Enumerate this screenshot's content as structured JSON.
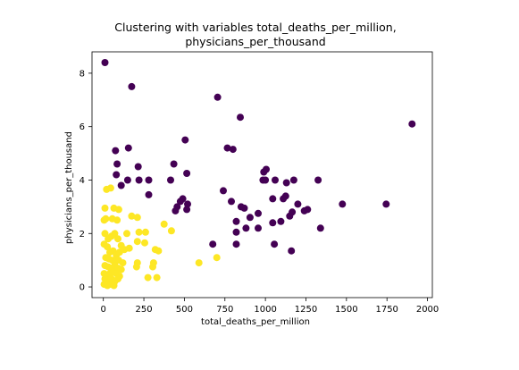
{
  "chart_data": {
    "type": "scatter",
    "title_line1": "Clustering with variables total_deaths_per_million,",
    "title_line2": "physicians_per_thousand",
    "xlabel": "total_deaths_per_million",
    "ylabel": "physicians_per_thousand",
    "xlim": [
      -70,
      2030
    ],
    "ylim": [
      -0.4,
      8.8
    ],
    "xticks": [
      0,
      250,
      500,
      750,
      1000,
      1250,
      1500,
      1750,
      2000
    ],
    "yticks": [
      0,
      2,
      4,
      6,
      8
    ],
    "grid": false,
    "legend": "none",
    "series": [
      {
        "color": "#440154",
        "points": [
          [
            10,
            8.4
          ],
          [
            175,
            7.5
          ],
          [
            705,
            7.1
          ],
          [
            845,
            6.35
          ],
          [
            1905,
            6.1
          ],
          [
            505,
            5.5
          ],
          [
            155,
            5.2
          ],
          [
            75,
            5.1
          ],
          [
            765,
            5.2
          ],
          [
            800,
            5.15
          ],
          [
            85,
            4.6
          ],
          [
            215,
            4.5
          ],
          [
            435,
            4.6
          ],
          [
            990,
            4.3
          ],
          [
            1005,
            4.4
          ],
          [
            80,
            4.2
          ],
          [
            150,
            4.0
          ],
          [
            220,
            4.0
          ],
          [
            280,
            4.0
          ],
          [
            415,
            4.0
          ],
          [
            515,
            4.25
          ],
          [
            985,
            4.0
          ],
          [
            1000,
            4.0
          ],
          [
            1060,
            4.0
          ],
          [
            1130,
            3.9
          ],
          [
            1175,
            4.0
          ],
          [
            1325,
            4.0
          ],
          [
            110,
            3.8
          ],
          [
            740,
            3.6
          ],
          [
            1125,
            3.4
          ],
          [
            1110,
            3.3
          ],
          [
            490,
            3.3
          ],
          [
            475,
            3.2
          ],
          [
            790,
            3.2
          ],
          [
            1045,
            3.3
          ],
          [
            280,
            3.45
          ],
          [
            1200,
            3.1
          ],
          [
            1475,
            3.1
          ],
          [
            1745,
            3.1
          ],
          [
            520,
            3.1
          ],
          [
            455,
            3.0
          ],
          [
            850,
            3.0
          ],
          [
            870,
            2.95
          ],
          [
            1260,
            2.9
          ],
          [
            1240,
            2.85
          ],
          [
            445,
            2.85
          ],
          [
            515,
            2.9
          ],
          [
            1165,
            2.8
          ],
          [
            1150,
            2.65
          ],
          [
            955,
            2.75
          ],
          [
            905,
            2.6
          ],
          [
            1095,
            2.45
          ],
          [
            1045,
            2.4
          ],
          [
            820,
            2.45
          ],
          [
            880,
            2.2
          ],
          [
            955,
            2.2
          ],
          [
            1340,
            2.2
          ],
          [
            820,
            2.05
          ],
          [
            675,
            1.6
          ],
          [
            820,
            1.6
          ],
          [
            1055,
            1.6
          ],
          [
            1160,
            1.35
          ]
        ]
      },
      {
        "color": "#fde725",
        "points": [
          [
            20,
            3.65
          ],
          [
            45,
            3.7
          ],
          [
            10,
            2.95
          ],
          [
            65,
            2.95
          ],
          [
            95,
            2.9
          ],
          [
            5,
            2.5
          ],
          [
            15,
            2.55
          ],
          [
            55,
            2.55
          ],
          [
            85,
            2.5
          ],
          [
            175,
            2.65
          ],
          [
            210,
            2.6
          ],
          [
            145,
            2.0
          ],
          [
            220,
            2.05
          ],
          [
            260,
            2.05
          ],
          [
            375,
            2.35
          ],
          [
            420,
            2.1
          ],
          [
            210,
            1.7
          ],
          [
            255,
            1.65
          ],
          [
            320,
            1.4
          ],
          [
            340,
            1.35
          ],
          [
            10,
            2.0
          ],
          [
            30,
            1.8
          ],
          [
            50,
            1.9
          ],
          [
            70,
            2.0
          ],
          [
            90,
            1.8
          ],
          [
            110,
            1.55
          ],
          [
            5,
            1.6
          ],
          [
            25,
            1.5
          ],
          [
            40,
            1.3
          ],
          [
            60,
            1.35
          ],
          [
            80,
            1.2
          ],
          [
            100,
            1.3
          ],
          [
            130,
            1.4
          ],
          [
            160,
            1.45
          ],
          [
            15,
            1.1
          ],
          [
            35,
            1.05
          ],
          [
            55,
            1.0
          ],
          [
            75,
            0.95
          ],
          [
            95,
            1.0
          ],
          [
            120,
            0.9
          ],
          [
            10,
            0.8
          ],
          [
            30,
            0.75
          ],
          [
            50,
            0.7
          ],
          [
            70,
            0.8
          ],
          [
            90,
            0.7
          ],
          [
            110,
            0.65
          ],
          [
            205,
            0.75
          ],
          [
            210,
            0.9
          ],
          [
            305,
            0.75
          ],
          [
            310,
            0.9
          ],
          [
            5,
            0.5
          ],
          [
            20,
            0.45
          ],
          [
            40,
            0.5
          ],
          [
            60,
            0.55
          ],
          [
            80,
            0.5
          ],
          [
            100,
            0.4
          ],
          [
            10,
            0.3
          ],
          [
            30,
            0.25
          ],
          [
            50,
            0.3
          ],
          [
            70,
            0.2
          ],
          [
            90,
            0.3
          ],
          [
            5,
            0.1
          ],
          [
            25,
            0.05
          ],
          [
            45,
            0.1
          ],
          [
            65,
            0.05
          ],
          [
            275,
            0.35
          ],
          [
            330,
            0.35
          ],
          [
            590,
            0.9
          ],
          [
            700,
            1.1
          ]
        ]
      }
    ]
  }
}
